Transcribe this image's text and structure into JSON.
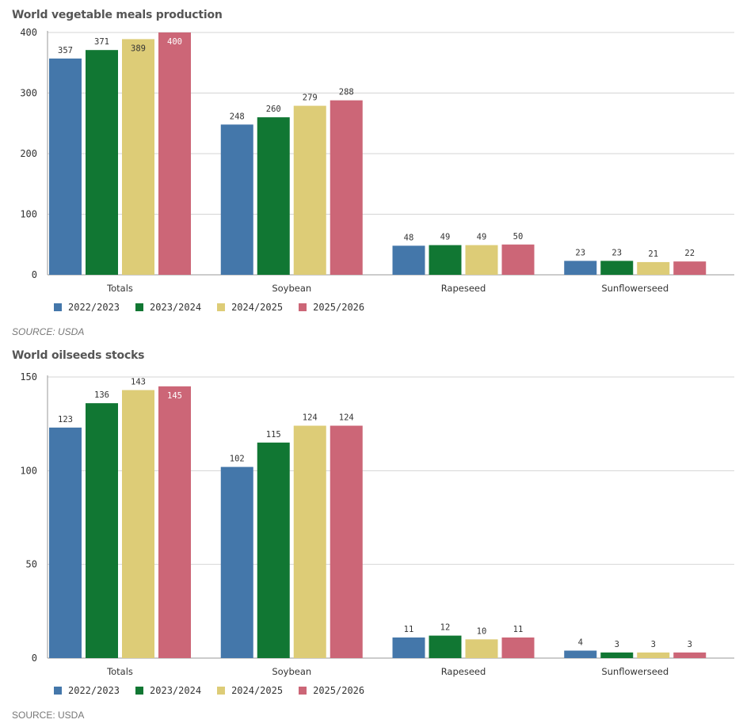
{
  "chart_data": [
    {
      "type": "bar",
      "title": "World vegetable meals production",
      "categories": [
        "Totals",
        "Soybean",
        "Rapeseed",
        "Sunflowerseed"
      ],
      "series": [
        {
          "name": "2022/2023",
          "color": "#4477aa",
          "values": [
            357,
            248,
            48,
            23
          ]
        },
        {
          "name": "2023/2024",
          "color": "#117733",
          "values": [
            371,
            260,
            49,
            23
          ]
        },
        {
          "name": "2024/2025",
          "color": "#ddcc77",
          "values": [
            389,
            279,
            49,
            21
          ]
        },
        {
          "name": "2025/2026",
          "color": "#cc6677",
          "values": [
            400,
            288,
            50,
            22
          ]
        }
      ],
      "yticks": [
        0,
        100,
        200,
        300,
        400
      ],
      "ylim": [
        0,
        400
      ],
      "grid": true,
      "legend_placement": "bottom-left",
      "source": "SOURCE: USDA"
    },
    {
      "type": "bar",
      "title": "World oilseeds stocks",
      "categories": [
        "Totals",
        "Soybean",
        "Rapeseed",
        "Sunflowerseed"
      ],
      "series": [
        {
          "name": "2022/2023",
          "color": "#4477aa",
          "values": [
            123,
            102,
            11,
            4
          ]
        },
        {
          "name": "2023/2024",
          "color": "#117733",
          "values": [
            136,
            115,
            12,
            3
          ]
        },
        {
          "name": "2024/2025",
          "color": "#ddcc77",
          "values": [
            143,
            124,
            10,
            3
          ]
        },
        {
          "name": "2025/2026",
          "color": "#cc6677",
          "values": [
            145,
            124,
            11,
            3
          ]
        }
      ],
      "yticks": [
        0,
        50,
        100,
        150
      ],
      "ylim": [
        0,
        150
      ],
      "grid": true,
      "legend_placement": "bottom-left",
      "source": "SOURCE: USDA"
    }
  ]
}
